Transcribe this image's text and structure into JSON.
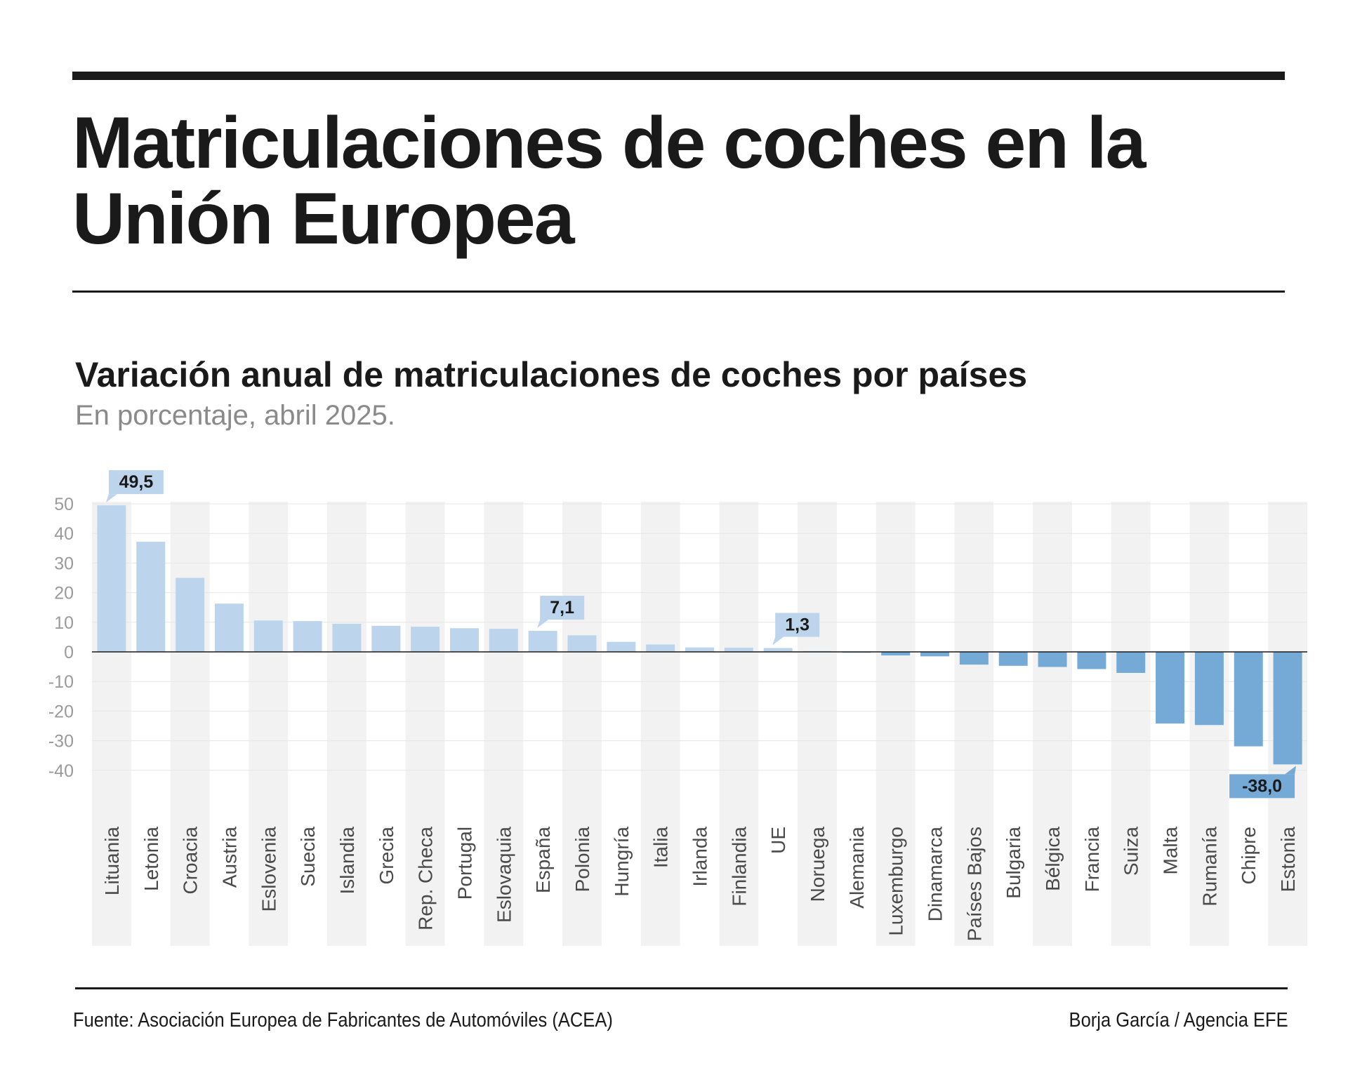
{
  "header": {
    "title": "Matriculaciones de coches en la Unión Europea"
  },
  "chart_data": {
    "type": "bar",
    "title": "Variación anual de matriculaciones de coches por países",
    "subtitle": "En porcentaje, abril 2025.",
    "xlabel": "",
    "ylabel": "",
    "ylim": [
      -40,
      50
    ],
    "yticks": [
      50,
      40,
      30,
      20,
      10,
      0,
      -10,
      -20,
      -30,
      -40
    ],
    "categories": [
      "Lituania",
      "Letonia",
      "Croacia",
      "Austria",
      "Eslovenia",
      "Suecia",
      "Islandia",
      "Grecia",
      "Rep. Checa",
      "Portugal",
      "Eslovaquia",
      "España",
      "Polonia",
      "Hungría",
      "Italia",
      "Irlanda",
      "Finlandia",
      "UE",
      "Noruega",
      "Alemania",
      "Luxemburgo",
      "Dinamarca",
      "Países Bajos",
      "Bulgaria",
      "Bélgica",
      "Francia",
      "Suiza",
      "Malta",
      "Rumanía",
      "Chipre",
      "Estonia"
    ],
    "values": [
      49.5,
      37.2,
      25.0,
      16.3,
      10.6,
      10.4,
      9.5,
      8.8,
      8.5,
      8.0,
      7.8,
      7.1,
      5.6,
      3.4,
      2.5,
      1.5,
      1.4,
      1.3,
      0.3,
      -0.2,
      -1.2,
      -1.5,
      -4.3,
      -4.7,
      -5.1,
      -5.8,
      -7.1,
      -24.2,
      -24.7,
      -31.9,
      -38.0
    ],
    "highlighted": [
      {
        "category": "Lituania",
        "label": "49,5"
      },
      {
        "category": "España",
        "label": "7,1"
      },
      {
        "category": "UE",
        "label": "1,3"
      },
      {
        "category": "Estonia",
        "label": "-38,0"
      }
    ],
    "colors": {
      "positive": "#bdd5ec",
      "negative": "#76aad6",
      "label_bg_positive": "#bdd5ec",
      "label_bg_negative": "#76aad6",
      "stripe": "#f2f2f2",
      "gridline": "#e6e6e6",
      "tick_text": "#9a9a9a",
      "category_text": "#4a4a4a"
    },
    "grid": true,
    "legend": "none"
  },
  "footer": {
    "source": "Fuente: Asociación Europea de Fabricantes de Automóviles (ACEA)",
    "credit": "Borja García / Agencia EFE"
  }
}
